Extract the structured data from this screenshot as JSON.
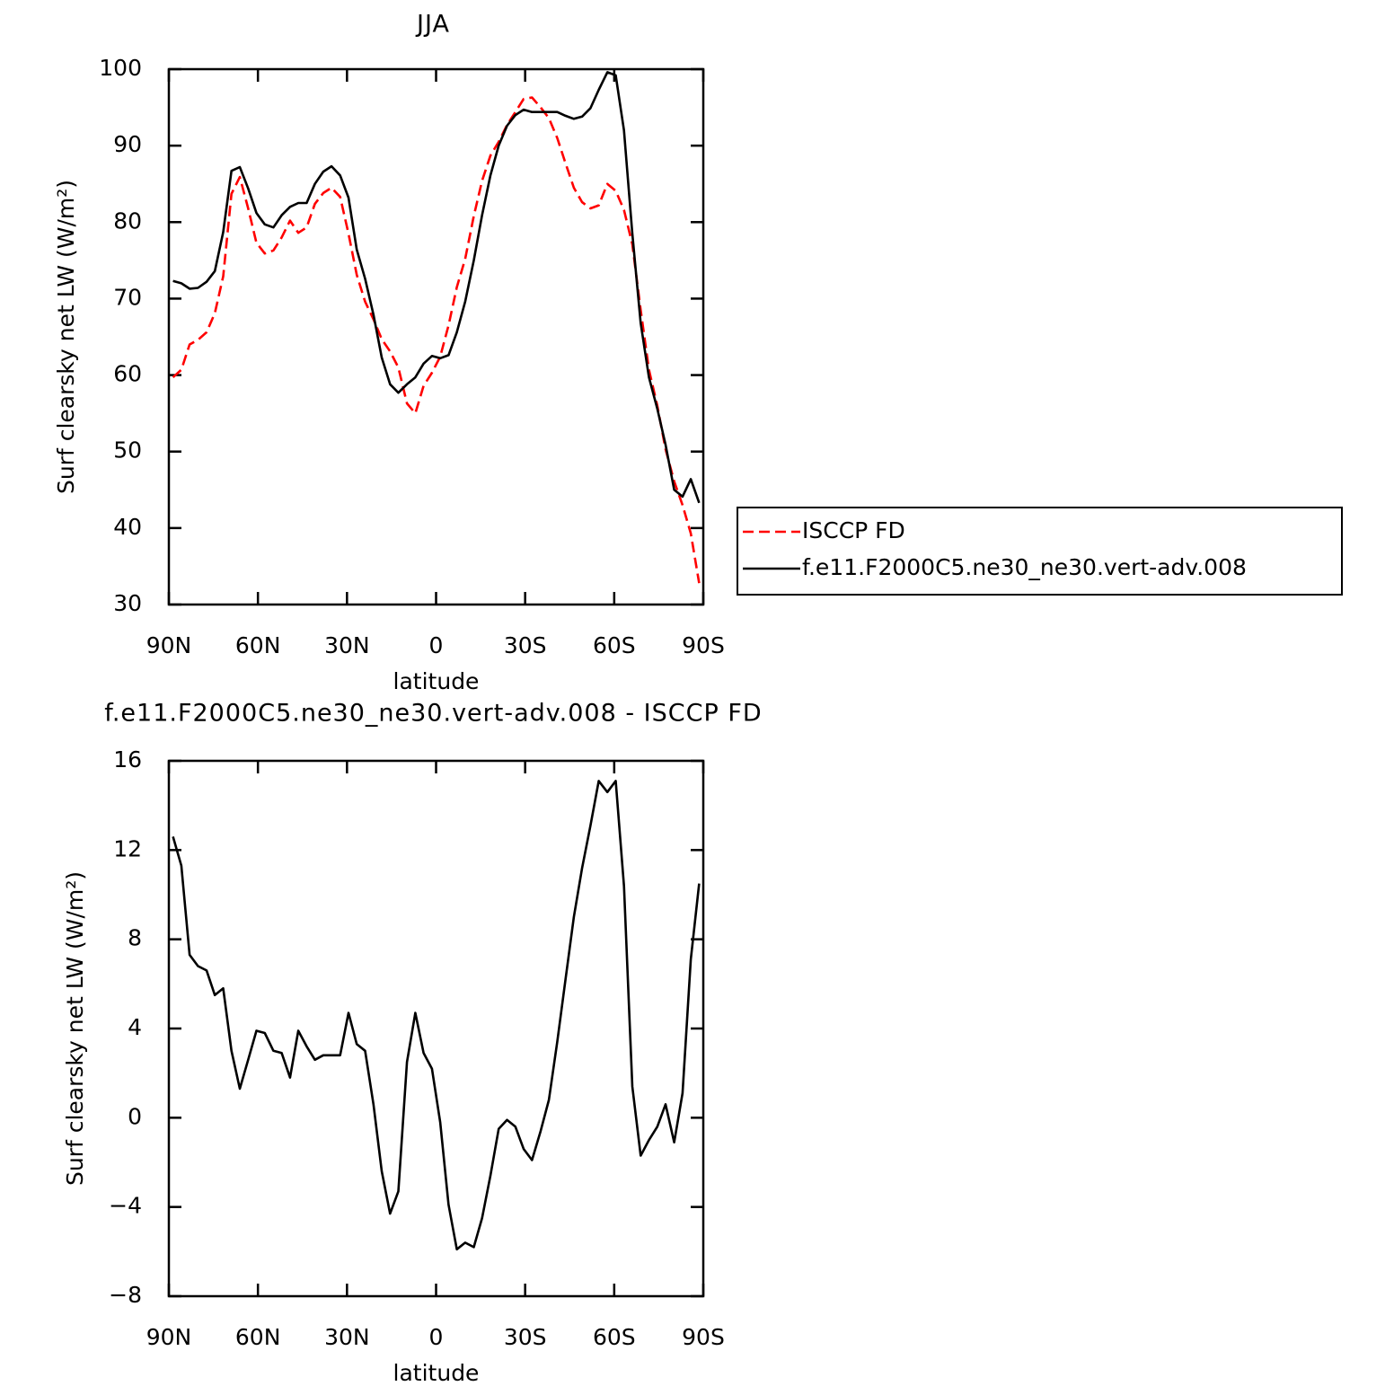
{
  "chart_data": [
    {
      "type": "line",
      "title": "JJA",
      "x_label": "latitude",
      "y_label": "Surf clearsky net LW (W/m²)",
      "x": [
        88.6,
        85.8,
        83.0,
        80.2,
        77.3,
        74.5,
        71.7,
        68.9,
        66.1,
        63.3,
        60.5,
        57.7,
        54.8,
        52.0,
        49.2,
        46.4,
        43.6,
        40.8,
        38.0,
        35.2,
        32.3,
        29.5,
        26.7,
        23.9,
        21.1,
        18.3,
        15.5,
        12.7,
        9.8,
        7.0,
        4.2,
        1.4,
        -1.4,
        -4.2,
        -7.0,
        -9.8,
        -12.7,
        -15.5,
        -18.3,
        -21.1,
        -23.9,
        -26.7,
        -29.5,
        -32.3,
        -35.2,
        -38.0,
        -40.8,
        -43.6,
        -46.4,
        -49.2,
        -52.0,
        -54.8,
        -57.7,
        -60.5,
        -63.3,
        -66.1,
        -68.9,
        -71.7,
        -74.5,
        -77.3,
        -80.2,
        -83.0,
        -85.8,
        -88.6
      ],
      "series": [
        {
          "name": "ISCCP FD",
          "color": "#ff0000",
          "dash": true,
          "values": [
            59.7,
            60.7,
            64.0,
            64.6,
            65.6,
            68.1,
            72.9,
            83.7,
            85.9,
            81.8,
            77.3,
            75.9,
            76.3,
            78.0,
            80.2,
            78.6,
            79.3,
            82.4,
            83.8,
            84.5,
            83.3,
            78.5,
            73.1,
            69.6,
            67.3,
            64.7,
            63.1,
            61.0,
            56.3,
            55.0,
            58.6,
            60.3,
            62.4,
            66.5,
            71.5,
            75.2,
            80.8,
            85.4,
            88.7,
            90.5,
            92.7,
            94.4,
            96.1,
            96.3,
            95.0,
            93.6,
            91.0,
            87.7,
            84.5,
            82.6,
            81.8,
            82.2,
            85.0,
            84.1,
            81.6,
            77.1,
            68.5,
            60.7,
            56.0,
            50.3,
            46.1,
            43.0,
            39.3,
            32.8
          ]
        },
        {
          "name": "f.e11.F2000C5.ne30_ne30.vert-adv.008",
          "color": "#000000",
          "dash": false,
          "values": [
            72.3,
            72.0,
            71.3,
            71.4,
            72.2,
            73.6,
            78.7,
            86.7,
            87.2,
            84.4,
            81.2,
            79.7,
            79.3,
            80.9,
            82.0,
            82.5,
            82.5,
            85.0,
            86.6,
            87.3,
            86.1,
            83.2,
            76.4,
            72.6,
            67.9,
            62.3,
            58.8,
            57.7,
            58.8,
            59.7,
            61.5,
            62.5,
            62.2,
            62.6,
            65.6,
            69.6,
            75.0,
            80.9,
            86.1,
            90.0,
            92.6,
            94.0,
            94.7,
            94.4,
            94.4,
            94.4,
            94.4,
            93.9,
            93.5,
            93.8,
            94.9,
            97.3,
            99.6,
            99.2,
            92.0,
            78.5,
            66.8,
            59.7,
            55.6,
            50.9,
            45.0,
            44.1,
            46.4,
            43.3
          ]
        }
      ],
      "xlim": [
        90,
        -90
      ],
      "xticks": [
        {
          "value": 90,
          "label": "90N"
        },
        {
          "value": 60,
          "label": "60N"
        },
        {
          "value": 30,
          "label": "30N"
        },
        0,
        {
          "value": -30,
          "label": "30S"
        },
        {
          "value": -60,
          "label": "60S"
        },
        {
          "value": -90,
          "label": "90S"
        }
      ],
      "ylim": [
        30,
        100
      ],
      "yticks": [
        30,
        40,
        50,
        60,
        70,
        80,
        90,
        100
      ],
      "legend": "right"
    },
    {
      "type": "line",
      "title": "f.e11.F2000C5.ne30_ne30.vert-adv.008 - ISCCP FD",
      "x_label": "latitude",
      "y_label": "Surf clearsky net LW (W/m²)",
      "x": [
        88.6,
        85.8,
        83.0,
        80.2,
        77.3,
        74.5,
        71.7,
        68.9,
        66.1,
        63.3,
        60.5,
        57.7,
        54.8,
        52.0,
        49.2,
        46.4,
        43.6,
        40.8,
        38.0,
        35.2,
        32.3,
        29.5,
        26.7,
        23.9,
        21.1,
        18.3,
        15.5,
        12.7,
        9.8,
        7.0,
        4.2,
        1.4,
        -1.4,
        -4.2,
        -7.0,
        -9.8,
        -12.7,
        -15.5,
        -18.3,
        -21.1,
        -23.9,
        -26.7,
        -29.5,
        -32.3,
        -35.2,
        -38.0,
        -40.8,
        -43.6,
        -46.4,
        -49.2,
        -52.0,
        -54.8,
        -57.7,
        -60.5,
        -63.3,
        -66.1,
        -68.9,
        -71.7,
        -74.5,
        -77.3,
        -80.2,
        -83.0,
        -85.8,
        -88.6
      ],
      "series": [
        {
          "color": "#000000",
          "dash": false,
          "values": [
            12.6,
            11.3,
            7.3,
            6.8,
            6.6,
            5.5,
            5.8,
            3.0,
            1.3,
            2.6,
            3.9,
            3.8,
            3.0,
            2.9,
            1.8,
            3.9,
            3.2,
            2.6,
            2.8,
            2.8,
            2.8,
            4.7,
            3.3,
            3.0,
            0.6,
            -2.4,
            -4.3,
            -3.3,
            2.5,
            4.7,
            2.9,
            2.2,
            -0.2,
            -3.9,
            -5.9,
            -5.6,
            -5.8,
            -4.5,
            -2.6,
            -0.5,
            -0.1,
            -0.4,
            -1.4,
            -1.9,
            -0.6,
            0.8,
            3.4,
            6.2,
            9.0,
            11.2,
            13.1,
            15.1,
            14.6,
            15.1,
            10.4,
            1.4,
            -1.7,
            -1.0,
            -0.4,
            0.6,
            -1.1,
            1.1,
            7.1,
            10.5
          ]
        }
      ],
      "xlim": [
        90,
        -90
      ],
      "xticks": [
        {
          "value": 90,
          "label": "90N"
        },
        {
          "value": 60,
          "label": "60N"
        },
        {
          "value": 30,
          "label": "30N"
        },
        0,
        {
          "value": -30,
          "label": "30S"
        },
        {
          "value": -60,
          "label": "60S"
        },
        {
          "value": -90,
          "label": "90S"
        }
      ],
      "ylim": [
        -8,
        16
      ],
      "yticks": [
        {
          "value": -8,
          "label": "−8"
        },
        {
          "value": -4,
          "label": "−4"
        },
        0,
        4,
        8,
        12,
        16
      ]
    }
  ]
}
